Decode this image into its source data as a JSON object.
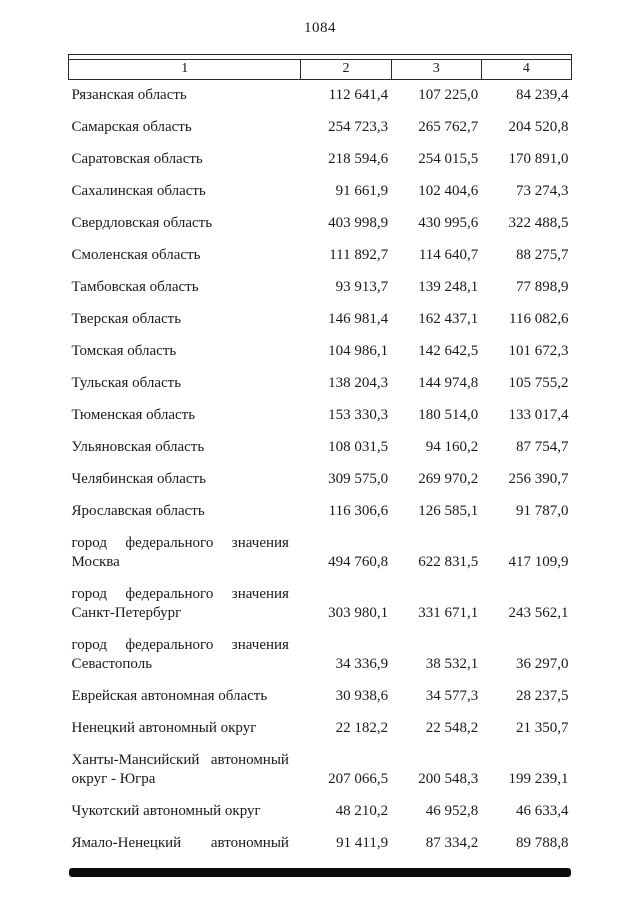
{
  "page": {
    "number": "1084"
  },
  "table": {
    "headers": [
      "1",
      "2",
      "3",
      "4"
    ],
    "rows": [
      {
        "region": "Рязанская область",
        "values": [
          "112 641,4",
          "107 225,0",
          "84 239,4"
        ]
      },
      {
        "region": "Самарская область",
        "values": [
          "254 723,3",
          "265 762,7",
          "204 520,8"
        ]
      },
      {
        "region": "Саратовская область",
        "values": [
          "218 594,6",
          "254 015,5",
          "170 891,0"
        ]
      },
      {
        "region": "Сахалинская область",
        "values": [
          "91 661,9",
          "102 404,6",
          "73 274,3"
        ]
      },
      {
        "region": "Свердловская область",
        "values": [
          "403 998,9",
          "430 995,6",
          "322 488,5"
        ]
      },
      {
        "region": "Смоленская область",
        "values": [
          "111 892,7",
          "114 640,7",
          "88 275,7"
        ]
      },
      {
        "region": "Тамбовская область",
        "values": [
          "93 913,7",
          "139 248,1",
          "77 898,9"
        ]
      },
      {
        "region": "Тверская область",
        "values": [
          "146 981,4",
          "162 437,1",
          "116 082,6"
        ]
      },
      {
        "region": "Томская область",
        "values": [
          "104 986,1",
          "142 642,5",
          "101 672,3"
        ]
      },
      {
        "region": "Тульская область",
        "values": [
          "138 204,3",
          "144 974,8",
          "105 755,2"
        ]
      },
      {
        "region": "Тюменская область",
        "values": [
          "153 330,3",
          "180 514,0",
          "133 017,4"
        ]
      },
      {
        "region": "Ульяновская область",
        "values": [
          "108 031,5",
          "94 160,2",
          "87 754,7"
        ]
      },
      {
        "region": "Челябинская область",
        "values": [
          "309 575,0",
          "269 970,2",
          "256 390,7"
        ]
      },
      {
        "region": "Ярославская область",
        "values": [
          "116 306,6",
          "126 585,1",
          "91 787,0"
        ]
      },
      {
        "region": "город федерального значения Москва",
        "values": [
          "494 760,8",
          "622 831,5",
          "417 109,9"
        ]
      },
      {
        "region": "город федерального значения Санкт-Петербург",
        "values": [
          "303 980,1",
          "331 671,1",
          "243 562,1"
        ]
      },
      {
        "region": "город федерального значения Севастополь",
        "values": [
          "34 336,9",
          "38 532,1",
          "36 297,0"
        ]
      },
      {
        "region": "Еврейская автономная область",
        "values": [
          "30 938,6",
          "34 577,3",
          "28 237,5"
        ]
      },
      {
        "region": "Ненецкий автономный округ",
        "values": [
          "22 182,2",
          "22 548,2",
          "21 350,7"
        ]
      },
      {
        "region": "Ханты-Мансийский автономный округ - Югра",
        "values": [
          "207 066,5",
          "200 548,3",
          "199 239,1"
        ]
      },
      {
        "region": "Чукотский автономный округ",
        "values": [
          "48 210,2",
          "46 952,8",
          "46 633,4"
        ]
      },
      {
        "region": "Ямало-Ненецкий автономный",
        "values": [
          "91 411,9",
          "87 334,2",
          "89 788,8"
        ],
        "justify_last": true
      }
    ]
  }
}
